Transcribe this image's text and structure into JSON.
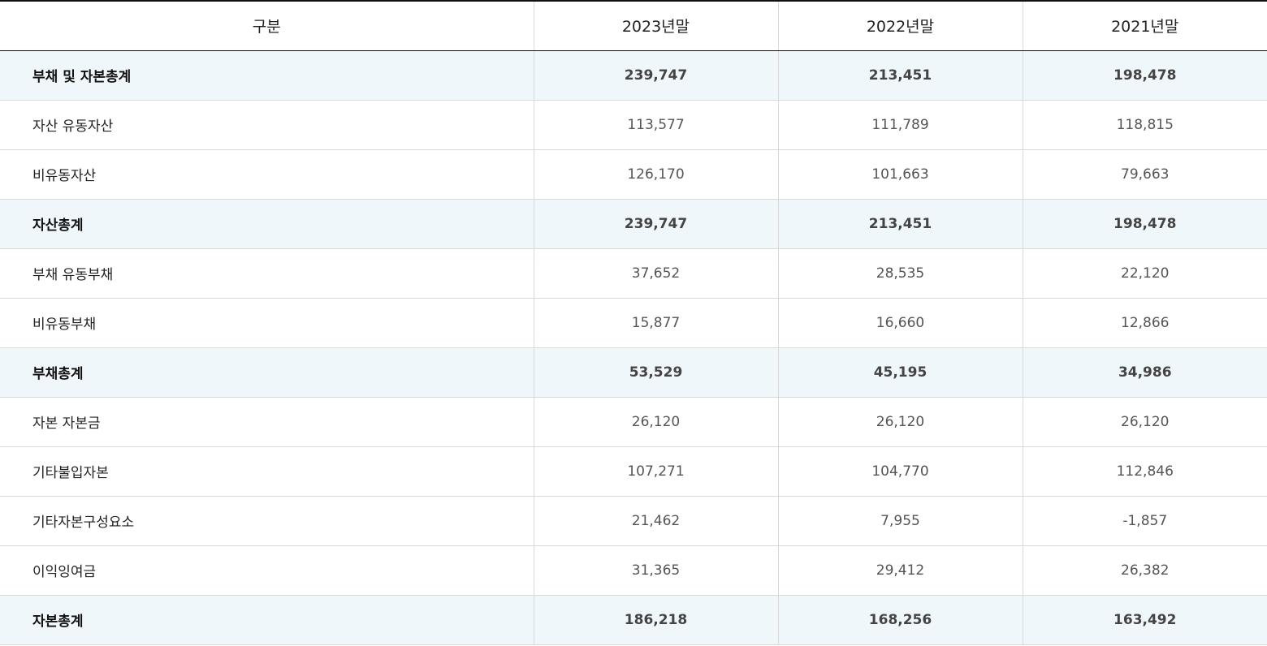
{
  "table": {
    "headers": [
      "구분",
      "2023년말",
      "2022년말",
      "2021년말"
    ],
    "rows": [
      {
        "label": "부채 및 자본총계",
        "values": [
          "239,747",
          "213,451",
          "198,478"
        ],
        "total": true
      },
      {
        "label": "자산 유동자산",
        "values": [
          "113,577",
          "111,789",
          "118,815"
        ],
        "total": false
      },
      {
        "label": "비유동자산",
        "values": [
          "126,170",
          "101,663",
          "79,663"
        ],
        "total": false
      },
      {
        "label": "자산총계",
        "values": [
          "239,747",
          "213,451",
          "198,478"
        ],
        "total": true
      },
      {
        "label": "부채 유동부채",
        "values": [
          "37,652",
          "28,535",
          "22,120"
        ],
        "total": false
      },
      {
        "label": "비유동부채",
        "values": [
          "15,877",
          "16,660",
          "12,866"
        ],
        "total": false
      },
      {
        "label": "부채총계",
        "values": [
          "53,529",
          "45,195",
          "34,986"
        ],
        "total": true
      },
      {
        "label": "자본 자본금",
        "values": [
          "26,120",
          "26,120",
          "26,120"
        ],
        "total": false
      },
      {
        "label": "기타불입자본",
        "values": [
          "107,271",
          "104,770",
          "112,846"
        ],
        "total": false
      },
      {
        "label": "기타자본구성요소",
        "values": [
          "21,462",
          "7,955",
          "-1,857"
        ],
        "total": false
      },
      {
        "label": "이익잉여금",
        "values": [
          "31,365",
          "29,412",
          "26,382"
        ],
        "total": false
      },
      {
        "label": "자본총계",
        "values": [
          "186,218",
          "168,256",
          "163,492"
        ],
        "total": true
      }
    ]
  },
  "colors": {
    "total_row_background": "#f0f7fb",
    "header_border": "#111111",
    "grid_line": "#d9d9d9"
  }
}
